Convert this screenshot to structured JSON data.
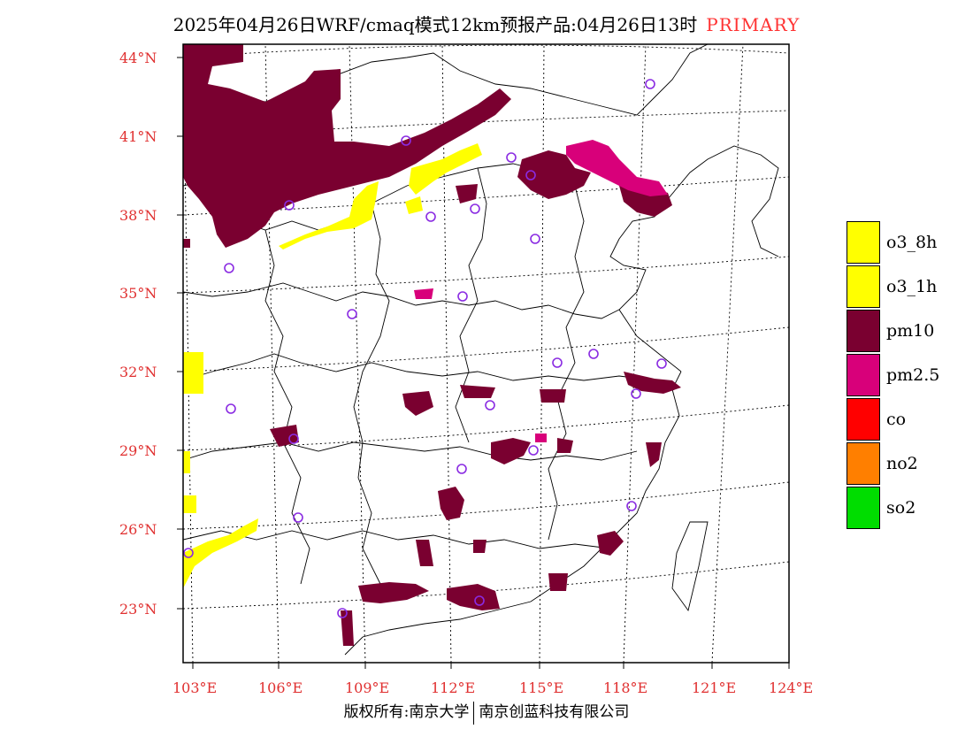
{
  "title": {
    "main": "2025年04月26日WRF/cmaq模式12km预报产品:04月26日13时",
    "tag": "PRIMARY"
  },
  "colors": {
    "o3_8h": "#ffff00",
    "o3_1h": "#ffff00",
    "pm10": "#7a0030",
    "pm25": "#d8007a",
    "co": "#ff0000",
    "no2": "#ff7f00",
    "so2": "#00dd00",
    "axis_label": "#e03030",
    "station": "#8a2be2"
  },
  "legend": [
    {
      "label": "o3_8h",
      "color": "#ffff00"
    },
    {
      "label": "o3_1h",
      "color": "#ffff00"
    },
    {
      "label": "pm10",
      "color": "#7a0030"
    },
    {
      "label": "pm2.5",
      "color": "#d8007a"
    },
    {
      "label": "co",
      "color": "#ff0000"
    },
    {
      "label": "no2",
      "color": "#ff7f00"
    },
    {
      "label": "so2",
      "color": "#00dd00"
    }
  ],
  "lat_labels": [
    "44°N",
    "41°N",
    "38°N",
    "35°N",
    "32°N",
    "29°N",
    "26°N",
    "23°N"
  ],
  "lon_labels": [
    "103°E",
    "106°E",
    "109°E",
    "112°E",
    "115°E",
    "118°E",
    "121°E",
    "124°E"
  ],
  "footer": {
    "left": "版权所有:南京大学",
    "right": "南京创蓝科技有限公司"
  }
}
